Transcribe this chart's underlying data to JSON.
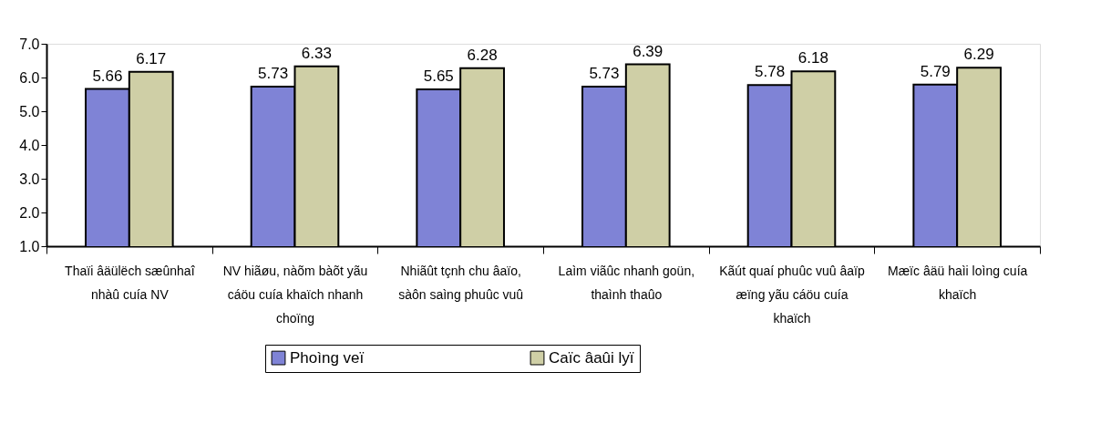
{
  "chart_data": {
    "type": "bar",
    "categories": [
      "Thaïi âäülëch sæûnhaî nhàû cuía NV",
      "NV hiãøu, nàõm bàõt yãu cáöu cuía khaïch nhanh choïng",
      "Nhiãût tçnh chu âaïo, sàôn saìng phuûc vuû",
      "Laìm viãûc nhanh goün, thaình thaûo",
      "Kãút quaí phuûc vuû âaïp æïng yãu cáöu cuía khaïch",
      "Mæïc âäü haìi loìng cuía khaïch"
    ],
    "series": [
      {
        "name": "Phoìng veï",
        "color": "#7f83d6",
        "values": [
          5.66,
          5.73,
          5.65,
          5.73,
          5.78,
          5.79
        ]
      },
      {
        "name": "Caïc âaûi lyï",
        "color": "#cfcfa6",
        "values": [
          6.17,
          6.33,
          6.28,
          6.39,
          6.18,
          6.29
        ]
      }
    ],
    "ylim": [
      1.0,
      7.0
    ],
    "yticks": [
      {
        "value": 1,
        "label": "1.0"
      },
      {
        "value": 2,
        "label": "2.0"
      },
      {
        "value": 3,
        "label": "3.0"
      },
      {
        "value": 4,
        "label": "4.0"
      },
      {
        "value": 5,
        "label": "5.0"
      },
      {
        "value": 6,
        "label": "6.0"
      },
      {
        "value": 7,
        "label": "7.0"
      }
    ],
    "data_labels": true,
    "grid": false,
    "legend": "bottom"
  }
}
